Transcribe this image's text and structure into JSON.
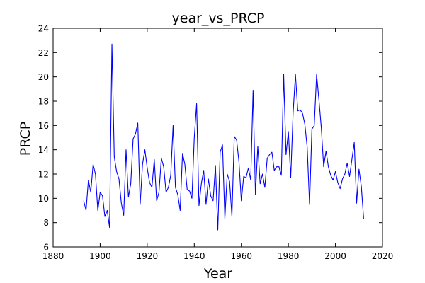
{
  "chart_data": {
    "type": "line",
    "title": "year_vs_PRCP",
    "xlabel": "Year",
    "ylabel": "PRCP",
    "xlim": [
      1880,
      2020
    ],
    "ylim": [
      6,
      24
    ],
    "x_ticks": [
      1880,
      1900,
      1920,
      1940,
      1960,
      1980,
      2000,
      2020
    ],
    "y_ticks": [
      6,
      8,
      10,
      12,
      14,
      16,
      18,
      20,
      22,
      24
    ],
    "grid": false,
    "line_color": "#0000ff",
    "series": [
      {
        "x": [
          1893,
          1894,
          1895,
          1896,
          1897,
          1898,
          1899,
          1900,
          1901,
          1902,
          1903,
          1904,
          1905,
          1906,
          1907,
          1908,
          1909,
          1910,
          1911,
          1912,
          1913,
          1914,
          1915,
          1916,
          1917,
          1918,
          1919,
          1920,
          1921,
          1922,
          1923,
          1924,
          1925,
          1926,
          1927,
          1928,
          1929,
          1930,
          1931,
          1932,
          1933,
          1934,
          1935,
          1936,
          1937,
          1938,
          1939,
          1940,
          1941,
          1942,
          1943,
          1944,
          1945,
          1946,
          1947,
          1948,
          1949,
          1950,
          1951,
          1952,
          1953,
          1954,
          1955,
          1956,
          1957,
          1958,
          1959,
          1960,
          1961,
          1962,
          1963,
          1964,
          1965,
          1966,
          1967,
          1968,
          1969,
          1970,
          1971,
          1972,
          1973,
          1974,
          1975,
          1976,
          1977,
          1978,
          1979,
          1980,
          1981,
          1982,
          1983,
          1984,
          1985,
          1986,
          1987,
          1988,
          1989,
          1990,
          1991,
          1992,
          1993,
          1994,
          1995,
          1996,
          1997,
          1998,
          1999,
          2000,
          2001,
          2002,
          2003,
          2004,
          2005,
          2006,
          2007,
          2008,
          2009,
          2010,
          2011,
          2012
        ],
        "values": [
          9.8,
          9.0,
          11.5,
          10.5,
          12.8,
          12.0,
          9.0,
          10.5,
          10.2,
          8.5,
          9.0,
          7.6,
          22.7,
          13.4,
          12.2,
          11.6,
          9.6,
          8.6,
          14.0,
          10.1,
          11.2,
          14.9,
          15.3,
          16.2,
          9.5,
          12.8,
          14.0,
          12.5,
          11.3,
          10.9,
          13.2,
          9.8,
          10.5,
          13.3,
          12.6,
          10.5,
          10.9,
          11.9,
          16.0,
          10.9,
          10.3,
          9.0,
          13.7,
          12.8,
          10.7,
          10.6,
          10.0,
          15.0,
          17.8,
          9.4,
          11.2,
          12.3,
          9.5,
          11.6,
          10.2,
          9.8,
          12.7,
          7.4,
          13.8,
          14.4,
          8.3,
          12.0,
          11.4,
          8.5,
          15.1,
          14.8,
          13.0,
          9.8,
          11.8,
          11.7,
          12.5,
          11.5,
          18.9,
          10.3,
          14.3,
          11.2,
          12.0,
          10.9,
          13.3,
          13.6,
          13.8,
          12.3,
          12.6,
          12.6,
          11.9,
          20.2,
          13.6,
          15.5,
          11.7,
          17.0,
          20.2,
          17.2,
          17.3,
          17.0,
          16.1,
          14.2,
          9.5,
          15.7,
          16.0,
          20.2,
          18.1,
          15.8,
          12.6,
          13.9,
          12.6,
          11.9,
          11.5,
          12.2,
          11.3,
          10.8,
          11.6,
          12.0,
          12.9,
          11.8,
          13.2,
          14.6,
          9.6,
          12.4,
          11.0,
          8.3
        ]
      }
    ]
  }
}
